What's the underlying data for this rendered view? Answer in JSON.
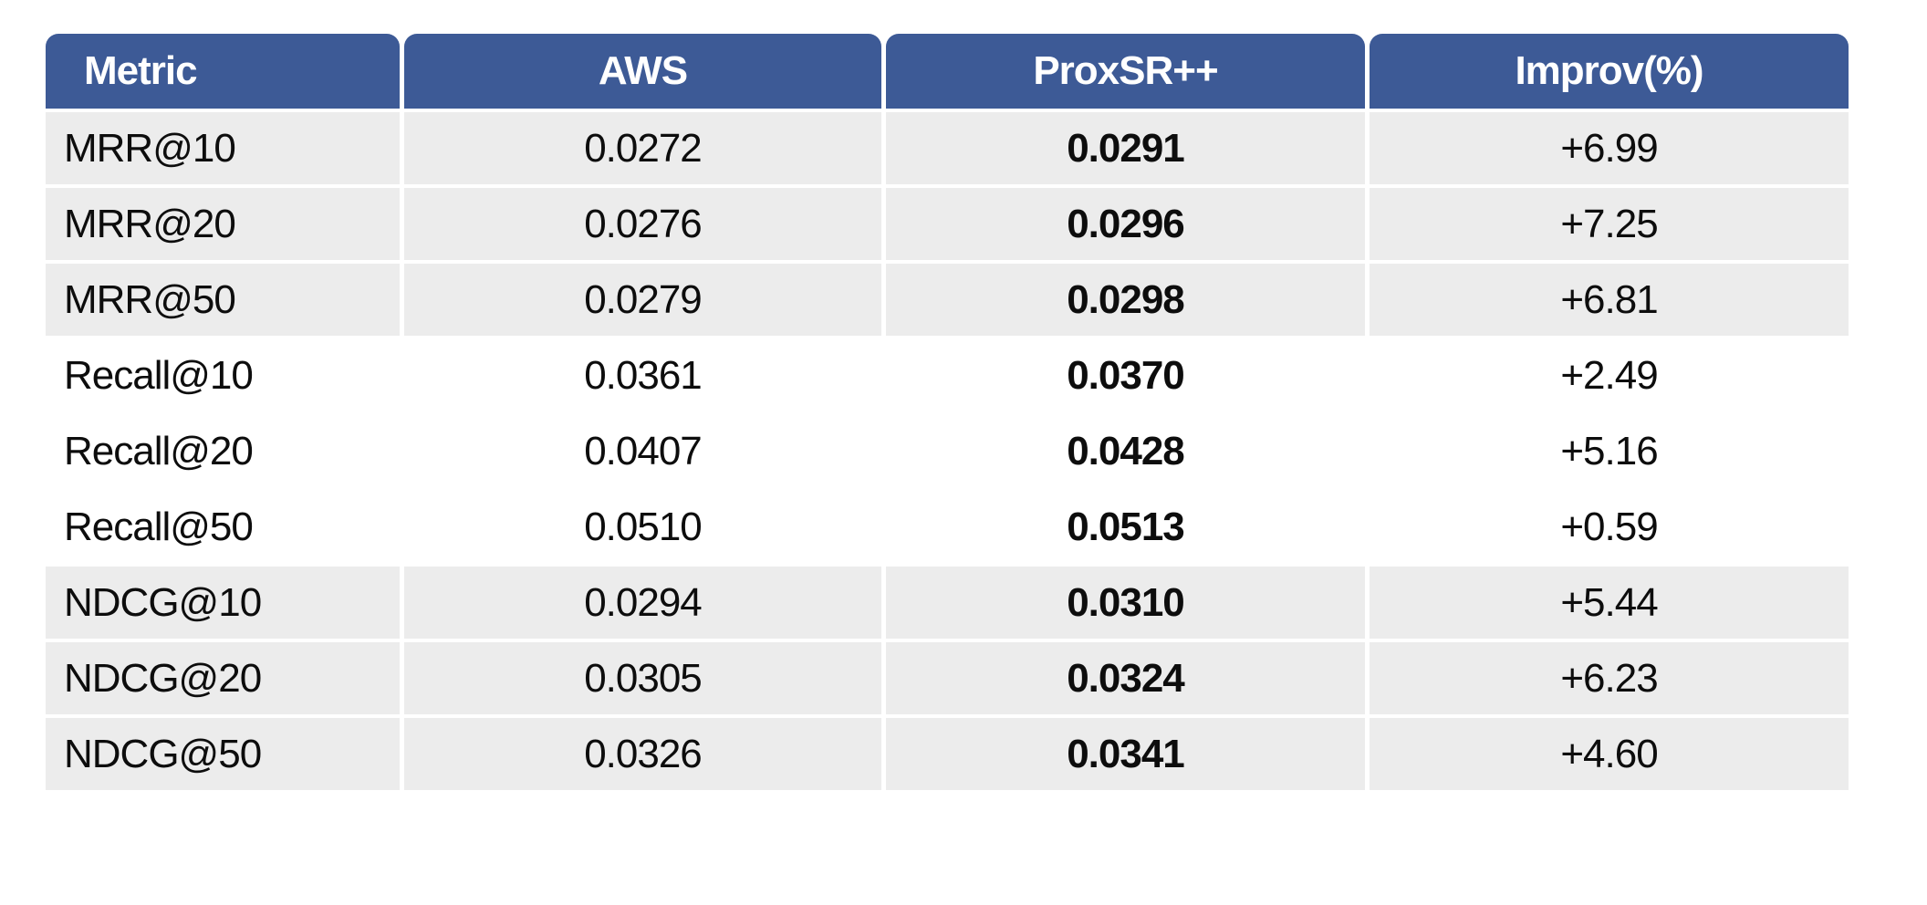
{
  "colors": {
    "header_bg": "#3D5A96",
    "band_gray": "#ECECEC",
    "band_white": "#FFFFFF",
    "header_text": "#FFFFFF",
    "body_text": "#0D0D0D"
  },
  "table": {
    "headers": {
      "metric": "Metric",
      "aws": "AWS",
      "proxsr": "ProxSR++",
      "improv": "Improv(%)"
    },
    "rows": [
      {
        "metric": "MRR@10",
        "aws": "0.0272",
        "proxsr": "0.0291",
        "improv": "+6.99"
      },
      {
        "metric": "MRR@20",
        "aws": "0.0276",
        "proxsr": "0.0296",
        "improv": "+7.25"
      },
      {
        "metric": "MRR@50",
        "aws": "0.0279",
        "proxsr": "0.0298",
        "improv": "+6.81"
      },
      {
        "metric": "Recall@10",
        "aws": "0.0361",
        "proxsr": "0.0370",
        "improv": "+2.49"
      },
      {
        "metric": "Recall@20",
        "aws": "0.0407",
        "proxsr": "0.0428",
        "improv": "+5.16"
      },
      {
        "metric": "Recall@50",
        "aws": "0.0510",
        "proxsr": "0.0513",
        "improv": "+0.59"
      },
      {
        "metric": "NDCG@10",
        "aws": "0.0294",
        "proxsr": "0.0310",
        "improv": "+5.44"
      },
      {
        "metric": "NDCG@20",
        "aws": "0.0305",
        "proxsr": "0.0324",
        "improv": "+6.23"
      },
      {
        "metric": "NDCG@50",
        "aws": "0.0326",
        "proxsr": "0.0341",
        "improv": "+4.60"
      }
    ]
  },
  "chart_data": {
    "type": "table",
    "title": "",
    "columns": [
      "Metric",
      "AWS",
      "ProxSR++",
      "Improv(%)"
    ],
    "rows": [
      [
        "MRR@10",
        0.0272,
        0.0291,
        6.99
      ],
      [
        "MRR@20",
        0.0276,
        0.0296,
        7.25
      ],
      [
        "MRR@50",
        0.0279,
        0.0298,
        6.81
      ],
      [
        "Recall@10",
        0.0361,
        0.037,
        2.49
      ],
      [
        "Recall@20",
        0.0407,
        0.0428,
        5.16
      ],
      [
        "Recall@50",
        0.051,
        0.0513,
        0.59
      ],
      [
        "NDCG@10",
        0.0294,
        0.031,
        5.44
      ],
      [
        "NDCG@20",
        0.0305,
        0.0324,
        6.23
      ],
      [
        "NDCG@50",
        0.0326,
        0.0341,
        4.6
      ]
    ],
    "layout_hints": {
      "bold_column": "ProxSR++",
      "band_groups": [
        [
          "MRR@10",
          "MRR@20",
          "MRR@50"
        ],
        [
          "Recall@10",
          "Recall@20",
          "Recall@50"
        ],
        [
          "NDCG@10",
          "NDCG@20",
          "NDCG@50"
        ]
      ],
      "banding": "gray-white-gray by metric group"
    }
  }
}
